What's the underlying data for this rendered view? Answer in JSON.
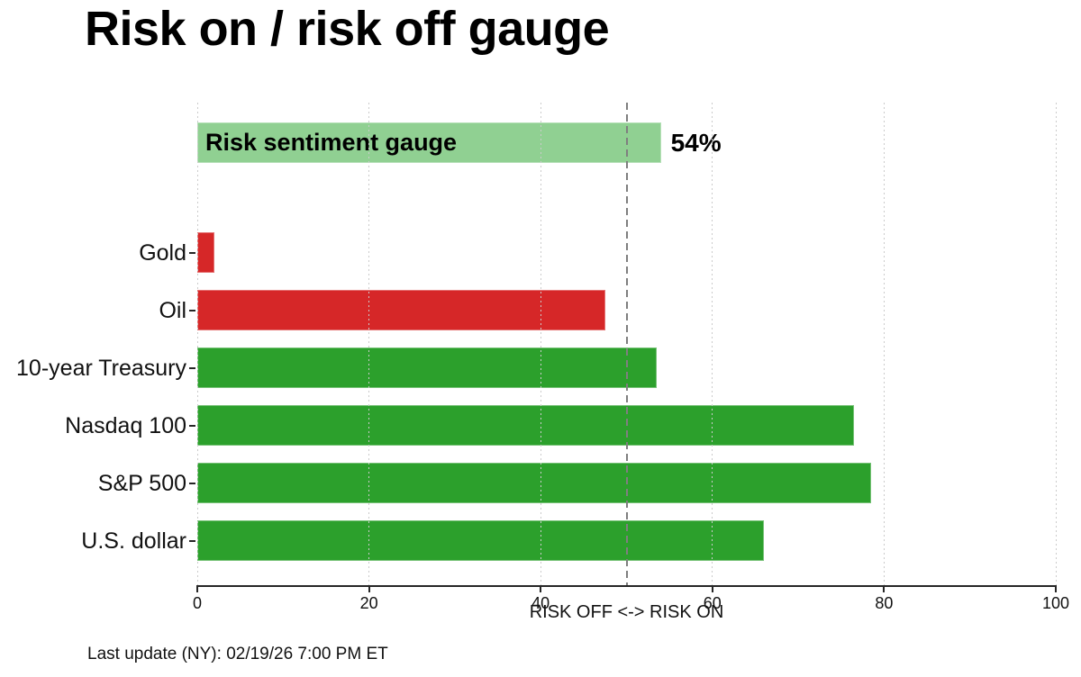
{
  "page": {
    "title": "Risk on / risk off gauge",
    "footer_note": "Last update (NY): 02/19/26 7:00 PM ET"
  },
  "colors": {
    "risk_off_red": "#d62728",
    "risk_on_green": "#2ca02c",
    "gauge_light_green": "#90d092",
    "axis": "#262626",
    "gridline": "#cbcbcb",
    "reference_line": "#7f7f7f"
  },
  "chart_data": {
    "type": "bar",
    "orientation": "horizontal",
    "title": "Risk on / risk off gauge",
    "xlabel": "RISK OFF <-> RISK ON",
    "xlim": [
      0,
      100
    ],
    "xticks": [
      0,
      20,
      40,
      60,
      80,
      100
    ],
    "grid": true,
    "grid_style": "dotted vertical",
    "reference_line": {
      "x": 50,
      "style": "dashed",
      "color": "#7f7f7f"
    },
    "gauge_bar": {
      "label": "Risk sentiment gauge",
      "value": 54,
      "annotation": "54%",
      "color": "#90d092"
    },
    "categories": [
      "Gold",
      "Oil",
      "10-year Treasury",
      "Nasdaq 100",
      "S&P 500",
      "U.S. dollar"
    ],
    "values": [
      2,
      47.5,
      53.5,
      76.5,
      78.5,
      66
    ],
    "bar_colors": [
      "#d62728",
      "#d62728",
      "#2ca02c",
      "#2ca02c",
      "#2ca02c",
      "#2ca02c"
    ],
    "legend": null,
    "footer": "Last update (NY): 02/19/26 7:00 PM ET"
  }
}
